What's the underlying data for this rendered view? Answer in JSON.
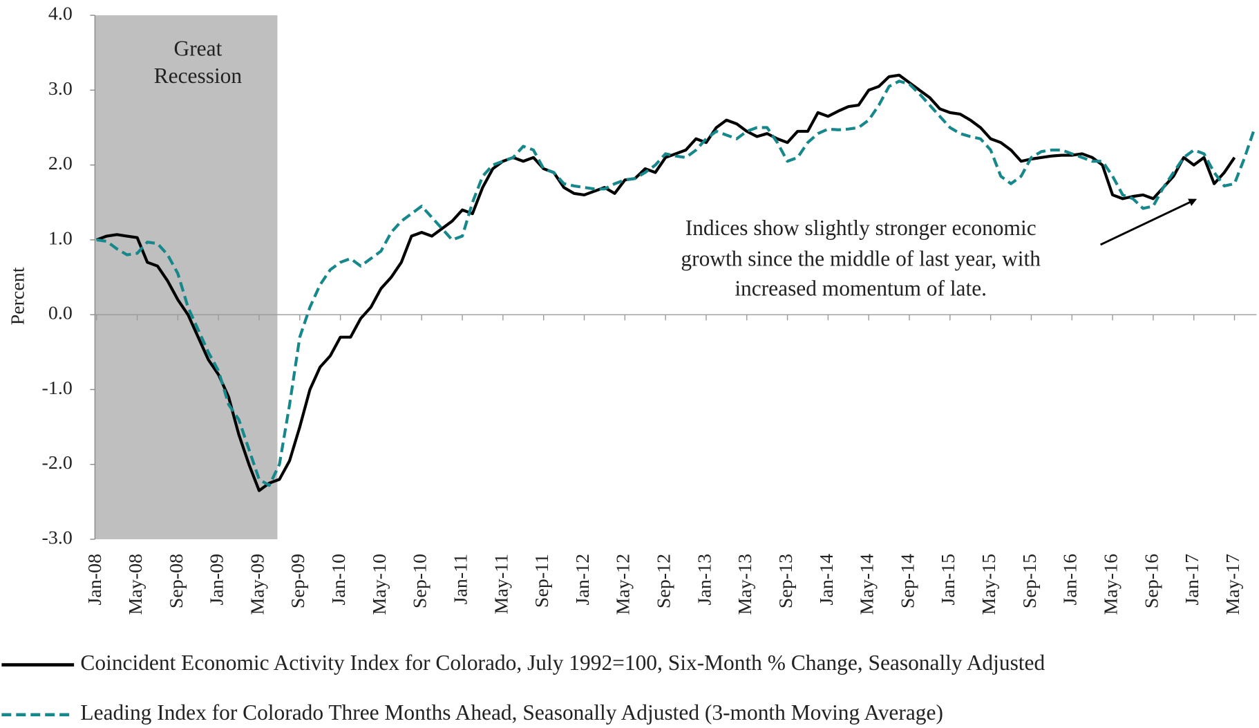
{
  "chart_data": {
    "type": "line",
    "y_axis_label": "Percent",
    "shade_label": [
      "Great",
      "Recession"
    ],
    "annotation": [
      "Indices show slightly stronger economic",
      "growth since the middle of last year, with",
      "increased momentum of late."
    ],
    "ylim": [
      -3,
      4
    ],
    "yticks": [
      {
        "value": -3,
        "label": "-3.0"
      },
      {
        "value": -2,
        "label": "-2.0"
      },
      {
        "value": -1,
        "label": "-1.0"
      },
      {
        "value": 0,
        "label": "0.0"
      },
      {
        "value": 1,
        "label": "1.0"
      },
      {
        "value": 2,
        "label": "2.0"
      },
      {
        "value": 3,
        "label": "3.0"
      },
      {
        "value": 4,
        "label": "4.0"
      }
    ],
    "categories": [
      "Jan-08",
      null,
      null,
      null,
      "May-08",
      null,
      null,
      null,
      "Sep-08",
      null,
      null,
      null,
      "Jan-09",
      null,
      null,
      null,
      "May-09",
      null,
      null,
      null,
      "Sep-09",
      null,
      null,
      null,
      "Jan-10",
      null,
      null,
      null,
      "May-10",
      null,
      null,
      null,
      "Sep-10",
      null,
      null,
      null,
      "Jan-11",
      null,
      null,
      null,
      "May-11",
      null,
      null,
      null,
      "Sep-11",
      null,
      null,
      null,
      "Jan-12",
      null,
      null,
      null,
      "May-12",
      null,
      null,
      null,
      "Sep-12",
      null,
      null,
      null,
      "Jan-13",
      null,
      null,
      null,
      "May-13",
      null,
      null,
      null,
      "Sep-13",
      null,
      null,
      null,
      "Jan-14",
      null,
      null,
      null,
      "May-14",
      null,
      null,
      null,
      "Sep-14",
      null,
      null,
      null,
      "Jan-15",
      null,
      null,
      null,
      "May-15",
      null,
      null,
      null,
      "Sep-15",
      null,
      null,
      null,
      "Jan-16",
      null,
      null,
      null,
      "May-16",
      null,
      null,
      null,
      "Sep-16",
      null,
      null,
      null,
      "Jan-17",
      null,
      null,
      null,
      "May-17",
      null,
      null
    ],
    "series": [
      {
        "name": "Coincident Economic Activity Index for Colorado, July 1992=100, Six-Month % Change, Seasonally Adjusted",
        "color": "#000000",
        "dash": false,
        "values": [
          1.0,
          1.05,
          1.07,
          1.05,
          1.03,
          0.7,
          0.65,
          0.45,
          0.2,
          0.0,
          -0.3,
          -0.6,
          -0.8,
          -1.1,
          -1.6,
          -2.0,
          -2.35,
          -2.25,
          -2.2,
          -1.95,
          -1.5,
          -1.0,
          -0.7,
          -0.55,
          -0.3,
          -0.3,
          -0.05,
          0.1,
          0.35,
          0.5,
          0.7,
          1.05,
          1.1,
          1.05,
          1.15,
          1.25,
          1.4,
          1.35,
          1.7,
          1.95,
          2.05,
          2.1,
          2.05,
          2.1,
          1.95,
          1.9,
          1.7,
          1.62,
          1.6,
          1.65,
          1.7,
          1.62,
          1.8,
          1.82,
          1.95,
          1.9,
          2.1,
          2.15,
          2.2,
          2.35,
          2.3,
          2.5,
          2.6,
          2.55,
          2.45,
          2.38,
          2.42,
          2.35,
          2.3,
          2.45,
          2.45,
          2.7,
          2.65,
          2.72,
          2.78,
          2.8,
          3.0,
          3.05,
          3.18,
          3.2,
          3.1,
          3.0,
          2.9,
          2.75,
          2.7,
          2.68,
          2.6,
          2.5,
          2.35,
          2.3,
          2.2,
          2.05,
          2.08,
          2.1,
          2.12,
          2.13,
          2.13,
          2.15,
          2.1,
          2.0,
          1.6,
          1.55,
          1.58,
          1.6,
          1.55,
          1.7,
          1.85,
          2.1,
          2.0,
          2.1,
          1.75,
          1.9,
          2.1,
          null,
          null
        ]
      },
      {
        "name": "Leading Index for Colorado Three Months Ahead, Seasonally Adjusted (3-month Moving Average)",
        "color": "#16878a",
        "dash": true,
        "values": [
          1.0,
          0.98,
          0.88,
          0.8,
          0.82,
          0.97,
          0.95,
          0.8,
          0.55,
          0.1,
          -0.2,
          -0.5,
          -0.75,
          -1.2,
          -1.4,
          -1.8,
          -2.2,
          -2.28,
          -2.0,
          -1.2,
          -0.3,
          0.1,
          0.4,
          0.6,
          0.7,
          0.75,
          0.65,
          0.75,
          0.85,
          1.1,
          1.25,
          1.35,
          1.45,
          1.3,
          1.15,
          1.0,
          1.05,
          1.5,
          1.85,
          2.0,
          2.05,
          2.1,
          2.25,
          2.2,
          1.95,
          1.9,
          1.75,
          1.72,
          1.7,
          1.68,
          1.68,
          1.75,
          1.8,
          1.82,
          1.9,
          2.0,
          2.15,
          2.12,
          2.1,
          2.2,
          2.35,
          2.45,
          2.4,
          2.35,
          2.45,
          2.5,
          2.5,
          2.3,
          2.05,
          2.1,
          2.3,
          2.42,
          2.48,
          2.47,
          2.48,
          2.5,
          2.6,
          2.8,
          3.05,
          3.12,
          3.08,
          2.95,
          2.8,
          2.65,
          2.5,
          2.42,
          2.38,
          2.35,
          2.2,
          1.85,
          1.75,
          1.85,
          2.1,
          2.18,
          2.2,
          2.2,
          2.15,
          2.1,
          2.05,
          2.05,
          1.85,
          1.6,
          1.55,
          1.42,
          1.45,
          1.7,
          1.9,
          2.1,
          2.2,
          2.15,
          1.9,
          1.72,
          1.75,
          2.1,
          2.5
        ]
      }
    ]
  }
}
